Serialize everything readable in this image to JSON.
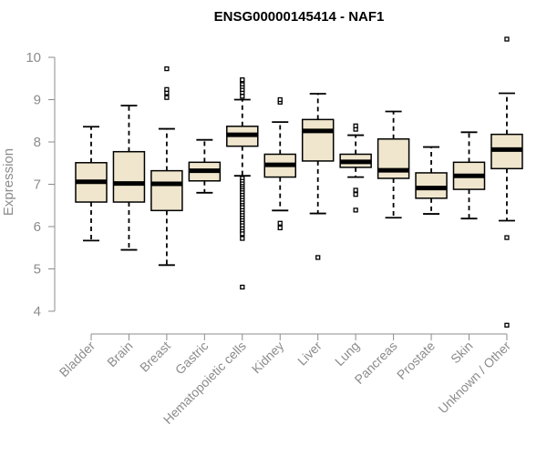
{
  "chart_data": {
    "type": "boxplot",
    "title": "ENSG00000145414 - NAF1",
    "ylabel": "Expression",
    "xlabel": "",
    "ylim": [
      3.6,
      10.6
    ],
    "yticks": [
      4,
      5,
      6,
      7,
      8,
      9,
      10
    ],
    "grid": false,
    "box_color": "#efe6cd",
    "categories": [
      "Bladder",
      "Brain",
      "Breast",
      "Gastric",
      "Hematopoietic cells",
      "Kidney",
      "Liver",
      "Lung",
      "Pancreas",
      "Prostate",
      "Skin",
      "Unknown / Other"
    ],
    "boxes": [
      {
        "name": "Bladder",
        "whislo": 5.67,
        "q1": 6.58,
        "med": 7.06,
        "q3": 7.51,
        "whishi": 8.36,
        "fliers": []
      },
      {
        "name": "Brain",
        "whislo": 5.45,
        "q1": 6.58,
        "med": 7.02,
        "q3": 7.77,
        "whishi": 8.86,
        "fliers": []
      },
      {
        "name": "Breast",
        "whislo": 5.09,
        "q1": 6.38,
        "med": 7.01,
        "q3": 7.32,
        "whishi": 8.31,
        "fliers": [
          9.05,
          9.16,
          9.24,
          9.73
        ]
      },
      {
        "name": "Gastric",
        "whislo": 6.8,
        "q1": 7.08,
        "med": 7.32,
        "q3": 7.52,
        "whishi": 8.05,
        "fliers": []
      },
      {
        "name": "Hematopoietic cells",
        "whislo": 7.2,
        "q1": 7.9,
        "med": 8.17,
        "q3": 8.37,
        "whishi": 9.0,
        "fliers": [
          9.08,
          9.17,
          9.24,
          9.31,
          9.37,
          9.44,
          9.47,
          7.14,
          7.07,
          7.01,
          6.95,
          6.9,
          6.85,
          6.8,
          6.74,
          6.68,
          6.62,
          6.56,
          6.5,
          6.45,
          6.38,
          6.32,
          6.26,
          6.2,
          6.14,
          6.08,
          6.02,
          5.95,
          5.89,
          5.83,
          5.72,
          4.57
        ]
      },
      {
        "name": "Kidney",
        "whislo": 6.38,
        "q1": 7.17,
        "med": 7.46,
        "q3": 7.71,
        "whishi": 8.47,
        "fliers": [
          6.08,
          5.97,
          8.94,
          9.0
        ]
      },
      {
        "name": "Liver",
        "whislo": 6.31,
        "q1": 7.55,
        "med": 8.26,
        "q3": 8.53,
        "whishi": 9.14,
        "fliers": [
          5.27
        ]
      },
      {
        "name": "Lung",
        "whislo": 7.17,
        "q1": 7.4,
        "med": 7.53,
        "q3": 7.71,
        "whishi": 8.16,
        "fliers": [
          8.3,
          8.38,
          6.86,
          6.76,
          6.39
        ]
      },
      {
        "name": "Pancreas",
        "whislo": 6.21,
        "q1": 7.14,
        "med": 7.33,
        "q3": 8.07,
        "whishi": 8.72,
        "fliers": []
      },
      {
        "name": "Prostate",
        "whislo": 6.3,
        "q1": 6.67,
        "med": 6.91,
        "q3": 7.27,
        "whishi": 7.88,
        "fliers": []
      },
      {
        "name": "Skin",
        "whislo": 6.19,
        "q1": 6.88,
        "med": 7.2,
        "q3": 7.52,
        "whishi": 8.23,
        "fliers": []
      },
      {
        "name": "Unknown / Other",
        "whislo": 6.14,
        "q1": 7.37,
        "med": 7.82,
        "q3": 8.18,
        "whishi": 9.15,
        "fliers": [
          5.74,
          3.67,
          10.43
        ]
      }
    ]
  }
}
